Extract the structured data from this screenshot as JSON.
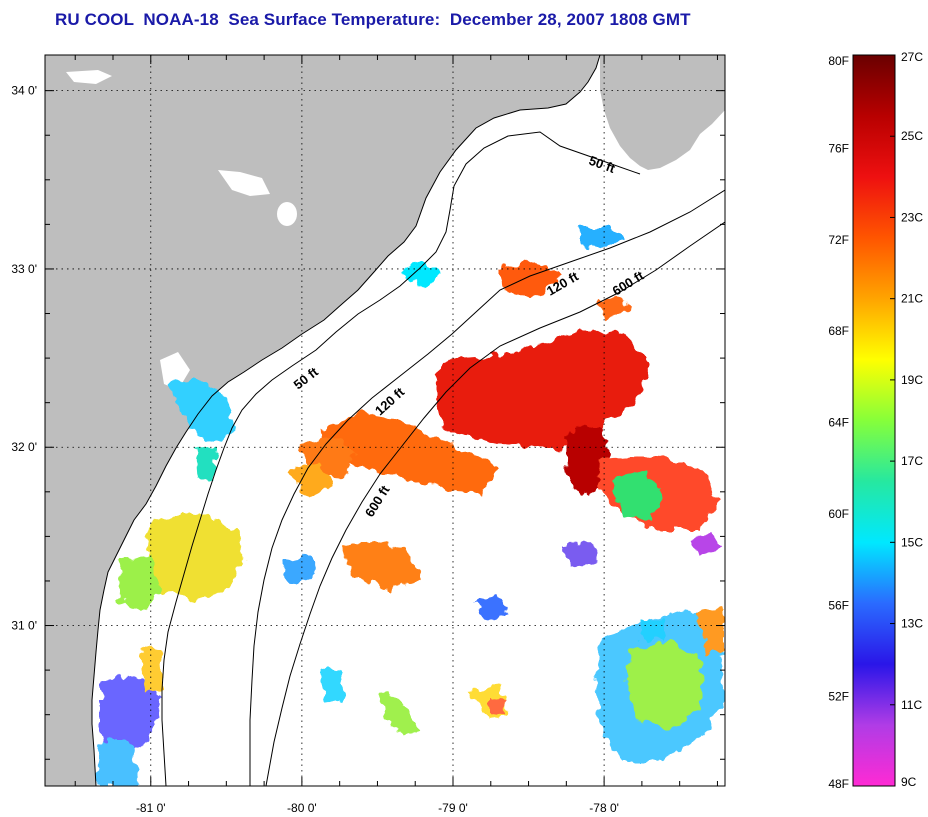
{
  "title": "RU COOL  NOAA-18  Sea Surface Temperature:  December 28, 2007 1808 GMT",
  "map": {
    "lon_range": [
      -81.7,
      -77.2
    ],
    "lat_range": [
      30.1,
      34.2
    ],
    "lon_ticks": [
      {
        "value": -81,
        "label": "-81 0'"
      },
      {
        "value": -80,
        "label": "-80 0'"
      },
      {
        "value": -79,
        "label": "-79 0'"
      },
      {
        "value": -78,
        "label": "-78 0'"
      }
    ],
    "lat_ticks": [
      {
        "value": 34,
        "label": "34 0'"
      },
      {
        "value": 33,
        "label": "33 0'"
      },
      {
        "value": 32,
        "label": "32 0'"
      },
      {
        "value": 31,
        "label": "31 0'"
      }
    ],
    "land_color": "#bebebe",
    "grid": "dotted",
    "contour_labels": [
      {
        "text": "50 ft"
      },
      {
        "text": "50 ft"
      },
      {
        "text": "120 ft"
      },
      {
        "text": "120 ft"
      },
      {
        "text": "600 ft"
      },
      {
        "text": "600 ft"
      }
    ]
  },
  "colorbar": {
    "fahrenheit_labels": [
      "80F",
      "76F",
      "72F",
      "68F",
      "64F",
      "60F",
      "56F",
      "52F",
      "48F"
    ],
    "celsius_labels": [
      "27C",
      "25C",
      "23C",
      "21C",
      "19C",
      "17C",
      "15C",
      "13C",
      "11C",
      "9C"
    ],
    "stops": [
      "#ff2ad4",
      "#b03ce6",
      "#2a16e8",
      "#2a6bff",
      "#00e8ff",
      "#26e8a0",
      "#86ff3a",
      "#ffff00",
      "#ffa400",
      "#ff5500",
      "#ee1010",
      "#b80000",
      "#6a0000"
    ]
  }
}
